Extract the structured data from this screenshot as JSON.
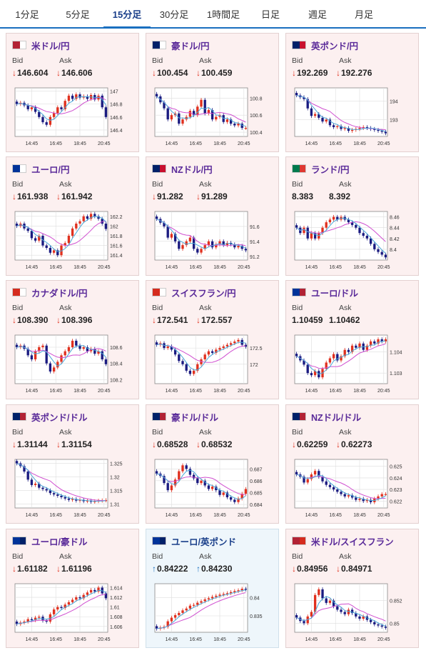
{
  "timeframe_tabs": [
    {
      "label": "1分足"
    },
    {
      "label": "5分足"
    },
    {
      "label": "15分足",
      "active": true
    },
    {
      "label": "30分足"
    },
    {
      "label": "1時間足"
    },
    {
      "label": "日足"
    },
    {
      "label": "週足"
    },
    {
      "label": "月足"
    }
  ],
  "colors": {
    "up_candle": "#e0301e",
    "down_candle": "#1a1a80",
    "short_ma": "#4aa8d8",
    "long_ma": "#d050d0",
    "grid": "#dddddd"
  },
  "common": {
    "bid_label": "Bid",
    "ask_label": "Ask"
  },
  "pairs": [
    {
      "name": "米ドル/円",
      "flag": [
        "#b22234",
        "#ffffff"
      ],
      "dir": "down",
      "bid": "146.604",
      "ask": "146.606",
      "chart_data": {
        "type": "candlestick",
        "x_ticks": [
          "14:45",
          "16:45",
          "18:45",
          "20:45"
        ],
        "y_ticks": [
          "147",
          "146.8",
          "146.6",
          "146.4"
        ],
        "ylim": [
          146.3,
          147.05
        ],
        "close": [
          146.8,
          146.82,
          146.78,
          146.72,
          146.75,
          146.68,
          146.6,
          146.52,
          146.48,
          146.6,
          146.66,
          146.75,
          146.72,
          146.85,
          146.93,
          146.88,
          146.95,
          146.9,
          146.92,
          146.88,
          146.94,
          146.87,
          146.93,
          146.75,
          146.6
        ]
      }
    },
    {
      "name": "豪ドル/円",
      "flag": [
        "#012169",
        "#ffffff"
      ],
      "dir": "down",
      "bid": "100.454",
      "ask": "100.459",
      "chart_data": {
        "type": "candlestick",
        "x_ticks": [
          "14:45",
          "16:45",
          "18:45",
          "20:45"
        ],
        "y_ticks": [
          "100.8",
          "100.6",
          "100.4"
        ],
        "ylim": [
          100.35,
          100.92
        ],
        "close": [
          100.82,
          100.75,
          100.68,
          100.55,
          100.6,
          100.62,
          100.5,
          100.55,
          100.58,
          100.65,
          100.6,
          100.7,
          100.78,
          100.62,
          100.66,
          100.55,
          100.58,
          100.6,
          100.52,
          100.55,
          100.5,
          100.48,
          100.5,
          100.45,
          100.45
        ]
      }
    },
    {
      "name": "英ポンド/円",
      "flag": [
        "#012169",
        "#c8102e"
      ],
      "dir": "down",
      "bid": "192.269",
      "ask": "192.276",
      "chart_data": {
        "type": "candlestick",
        "x_ticks": [
          "14:45",
          "16:45",
          "18:45",
          "20:45"
        ],
        "y_ticks": [
          "194",
          "193"
        ],
        "ylim": [
          192.1,
          194.7
        ],
        "close": [
          194.3,
          194.2,
          194.1,
          193.6,
          193.2,
          193.3,
          193.1,
          192.9,
          193.0,
          192.7,
          192.6,
          192.65,
          192.5,
          192.55,
          192.4,
          192.45,
          192.5,
          192.55,
          192.6,
          192.55,
          192.5,
          192.45,
          192.4,
          192.35,
          192.27
        ]
      }
    },
    {
      "name": "ユーロ/円",
      "flag": [
        "#003399",
        "#ffffff"
      ],
      "dir": "down",
      "bid": "161.938",
      "ask": "161.942",
      "chart_data": {
        "type": "candlestick",
        "x_ticks": [
          "14:45",
          "16:45",
          "18:45",
          "20:45"
        ],
        "y_ticks": [
          "162.2",
          "162",
          "161.8",
          "161.6",
          "161.4"
        ],
        "ylim": [
          161.3,
          162.3
        ],
        "close": [
          162.0,
          162.05,
          161.95,
          161.9,
          161.75,
          161.7,
          161.8,
          161.6,
          161.55,
          161.45,
          161.5,
          161.4,
          161.6,
          161.65,
          161.8,
          161.95,
          162.05,
          162.1,
          162.2,
          162.15,
          162.25,
          162.2,
          162.15,
          162.05,
          161.94
        ]
      }
    },
    {
      "name": "NZドル/円",
      "flag": [
        "#012169",
        "#c8102e"
      ],
      "dir": "down",
      "bid": "91.282",
      "ask": "91.289",
      "chart_data": {
        "type": "candlestick",
        "x_ticks": [
          "14:45",
          "16:45",
          "18:45",
          "20:45"
        ],
        "y_ticks": [
          "91.6",
          "91.4",
          "91.2"
        ],
        "ylim": [
          91.15,
          91.8
        ],
        "close": [
          91.7,
          91.65,
          91.6,
          91.45,
          91.5,
          91.4,
          91.3,
          91.35,
          91.4,
          91.45,
          91.3,
          91.25,
          91.3,
          91.35,
          91.4,
          91.32,
          91.36,
          91.4,
          91.35,
          91.38,
          91.36,
          91.32,
          91.34,
          91.3,
          91.28
        ]
      }
    },
    {
      "name": "ランド/円",
      "flag": [
        "#007a4d",
        "#de3831"
      ],
      "dir": "none",
      "bid": "8.383",
      "ask": "8.392",
      "chart_data": {
        "type": "candlestick",
        "x_ticks": [
          "14:45",
          "16:45",
          "18:45",
          "20:45"
        ],
        "y_ticks": [
          "8.46",
          "8.44",
          "8.42",
          "8.4"
        ],
        "ylim": [
          8.38,
          8.47
        ],
        "close": [
          8.44,
          8.43,
          8.44,
          8.42,
          8.43,
          8.42,
          8.43,
          8.44,
          8.45,
          8.455,
          8.46,
          8.455,
          8.46,
          8.455,
          8.45,
          8.445,
          8.44,
          8.43,
          8.425,
          8.42,
          8.41,
          8.4,
          8.395,
          8.39,
          8.385
        ]
      }
    },
    {
      "name": "カナダドル/円",
      "flag": [
        "#d52b1e",
        "#ffffff"
      ],
      "dir": "down",
      "bid": "108.390",
      "ask": "108.396",
      "chart_data": {
        "type": "candlestick",
        "x_ticks": [
          "14:45",
          "16:45",
          "18:45",
          "20:45"
        ],
        "y_ticks": [
          "108.6",
          "108.4",
          "108.2"
        ],
        "ylim": [
          108.15,
          108.75
        ],
        "close": [
          108.6,
          108.62,
          108.58,
          108.5,
          108.45,
          108.55,
          108.6,
          108.62,
          108.4,
          108.3,
          108.35,
          108.42,
          108.5,
          108.55,
          108.6,
          108.68,
          108.62,
          108.58,
          108.6,
          108.55,
          108.58,
          108.52,
          108.55,
          108.45,
          108.39
        ]
      }
    },
    {
      "name": "スイスフラン/円",
      "flag": [
        "#d52b1e",
        "#ffffff"
      ],
      "dir": "down",
      "bid": "172.541",
      "ask": "172.557",
      "chart_data": {
        "type": "candlestick",
        "x_ticks": [
          "14:45",
          "16:45",
          "18:45",
          "20:45"
        ],
        "y_ticks": [
          "172.5",
          "172"
        ],
        "ylim": [
          171.4,
          172.9
        ],
        "close": [
          172.6,
          172.65,
          172.5,
          172.55,
          172.45,
          172.3,
          172.1,
          172.0,
          171.8,
          171.7,
          171.8,
          172.0,
          172.15,
          172.3,
          172.4,
          172.35,
          172.45,
          172.5,
          172.55,
          172.6,
          172.65,
          172.7,
          172.75,
          172.6,
          172.54
        ]
      }
    },
    {
      "name": "ユーロ/ドル",
      "flag": [
        "#003399",
        "#b22234"
      ],
      "dir": "none",
      "bid": "1.10459",
      "ask": "1.10462",
      "chart_data": {
        "type": "candlestick",
        "x_ticks": [
          "14:45",
          "16:45",
          "18:45",
          "20:45"
        ],
        "y_ticks": [
          "1.104",
          "1.103"
        ],
        "ylim": [
          1.1025,
          1.1048
        ],
        "close": [
          1.1038,
          1.1036,
          1.1034,
          1.103,
          1.1029,
          1.1031,
          1.1028,
          1.1032,
          1.1035,
          1.1037,
          1.1039,
          1.1036,
          1.1038,
          1.1041,
          1.104,
          1.1043,
          1.1042,
          1.1044,
          1.1041,
          1.1043,
          1.1045,
          1.1044,
          1.1046,
          1.1045,
          1.1046
        ]
      }
    },
    {
      "name": "英ポンド/ドル",
      "flag": [
        "#012169",
        "#b22234"
      ],
      "dir": "down",
      "bid": "1.31144",
      "ask": "1.31154",
      "chart_data": {
        "type": "candlestick",
        "x_ticks": [
          "14:45",
          "16:45",
          "18:45",
          "20:45"
        ],
        "y_ticks": [
          "1.325",
          "1.32",
          "1.315",
          "1.31"
        ],
        "ylim": [
          1.3085,
          1.3265
        ],
        "close": [
          1.325,
          1.324,
          1.322,
          1.319,
          1.317,
          1.3175,
          1.316,
          1.3155,
          1.315,
          1.314,
          1.3135,
          1.313,
          1.3125,
          1.312,
          1.3115,
          1.3118,
          1.3112,
          1.3115,
          1.311,
          1.3112,
          1.3108,
          1.311,
          1.3112,
          1.3113,
          1.3114
        ]
      }
    },
    {
      "name": "豪ドル/ドル",
      "flag": [
        "#012169",
        "#b22234"
      ],
      "dir": "down",
      "bid": "0.68528",
      "ask": "0.68532",
      "chart_data": {
        "type": "candlestick",
        "x_ticks": [
          "14:45",
          "16:45",
          "18:45",
          "20:45"
        ],
        "y_ticks": [
          "0.687",
          "0.686",
          "0.685",
          "0.684"
        ],
        "ylim": [
          0.6837,
          0.6878
        ],
        "close": [
          0.6866,
          0.6864,
          0.6858,
          0.6852,
          0.6856,
          0.6861,
          0.6868,
          0.6873,
          0.687,
          0.6865,
          0.6862,
          0.6858,
          0.686,
          0.6856,
          0.6853,
          0.6855,
          0.6852,
          0.6848,
          0.685,
          0.6846,
          0.6844,
          0.6842,
          0.6845,
          0.6849,
          0.6853
        ]
      }
    },
    {
      "name": "NZドル/ドル",
      "flag": [
        "#012169",
        "#b22234"
      ],
      "dir": "down",
      "bid": "0.62259",
      "ask": "0.62273",
      "chart_data": {
        "type": "candlestick",
        "x_ticks": [
          "14:45",
          "16:45",
          "18:45",
          "20:45"
        ],
        "y_ticks": [
          "0.625",
          "0.624",
          "0.623",
          "0.622"
        ],
        "ylim": [
          0.6214,
          0.6256
        ],
        "close": [
          0.6243,
          0.6241,
          0.6236,
          0.6239,
          0.6243,
          0.6246,
          0.6241,
          0.6237,
          0.6234,
          0.6232,
          0.623,
          0.6228,
          0.6226,
          0.6224,
          0.6225,
          0.6223,
          0.6221,
          0.6222,
          0.622,
          0.6221,
          0.6219,
          0.6222,
          0.6224,
          0.6226,
          0.6226
        ]
      }
    },
    {
      "name": "ユーロ/豪ドル",
      "flag": [
        "#003399",
        "#012169"
      ],
      "dir": "down",
      "bid": "1.61182",
      "ask": "1.61196",
      "chart_data": {
        "type": "candlestick",
        "x_ticks": [
          "14:45",
          "16:45",
          "18:45",
          "20:45"
        ],
        "y_ticks": [
          "1.614",
          "1.612",
          "1.61",
          "1.608",
          "1.606"
        ],
        "ylim": [
          1.6048,
          1.6148
        ],
        "close": [
          1.6065,
          1.6068,
          1.607,
          1.6075,
          1.6073,
          1.6078,
          1.608,
          1.6072,
          1.607,
          1.6085,
          1.6095,
          1.61,
          1.6098,
          1.6105,
          1.611,
          1.6115,
          1.612,
          1.6118,
          1.6125,
          1.613,
          1.6135,
          1.6132,
          1.614,
          1.6128,
          1.6118
        ]
      }
    },
    {
      "name": "ユーロ/英ポンド",
      "flag": [
        "#003399",
        "#012169"
      ],
      "dir": "up",
      "bid": "0.84222",
      "ask": "0.84230",
      "highlight": true,
      "chart_data": {
        "type": "candlestick",
        "x_ticks": [
          "14:45",
          "16:45",
          "18:45",
          "20:45"
        ],
        "y_ticks": [
          "0.84",
          "0.835"
        ],
        "ylim": [
          0.8305,
          0.8438
        ],
        "close": [
          0.8315,
          0.8318,
          0.832,
          0.8335,
          0.8345,
          0.8352,
          0.8358,
          0.8365,
          0.837,
          0.8378,
          0.838,
          0.8386,
          0.839,
          0.8395,
          0.8398,
          0.8402,
          0.8405,
          0.8408,
          0.841,
          0.8412,
          0.8415,
          0.8418,
          0.842,
          0.8424,
          0.8422
        ]
      }
    },
    {
      "name": "米ドル/スイスフラン",
      "flag": [
        "#b22234",
        "#d52b1e"
      ],
      "dir": "down",
      "bid": "0.84956",
      "ask": "0.84971",
      "chart_data": {
        "type": "candlestick",
        "x_ticks": [
          "14:45",
          "16:45",
          "18:45",
          "20:45"
        ],
        "y_ticks": [
          "0.852",
          "0.85"
        ],
        "ylim": [
          0.8492,
          0.8535
        ],
        "close": [
          0.8505,
          0.8502,
          0.85,
          0.8506,
          0.851,
          0.8525,
          0.853,
          0.8522,
          0.8518,
          0.852,
          0.8515,
          0.8512,
          0.851,
          0.8508,
          0.8512,
          0.8509,
          0.8506,
          0.8504,
          0.8506,
          0.8503,
          0.8501,
          0.8499,
          0.8498,
          0.8497,
          0.8496
        ]
      }
    }
  ]
}
